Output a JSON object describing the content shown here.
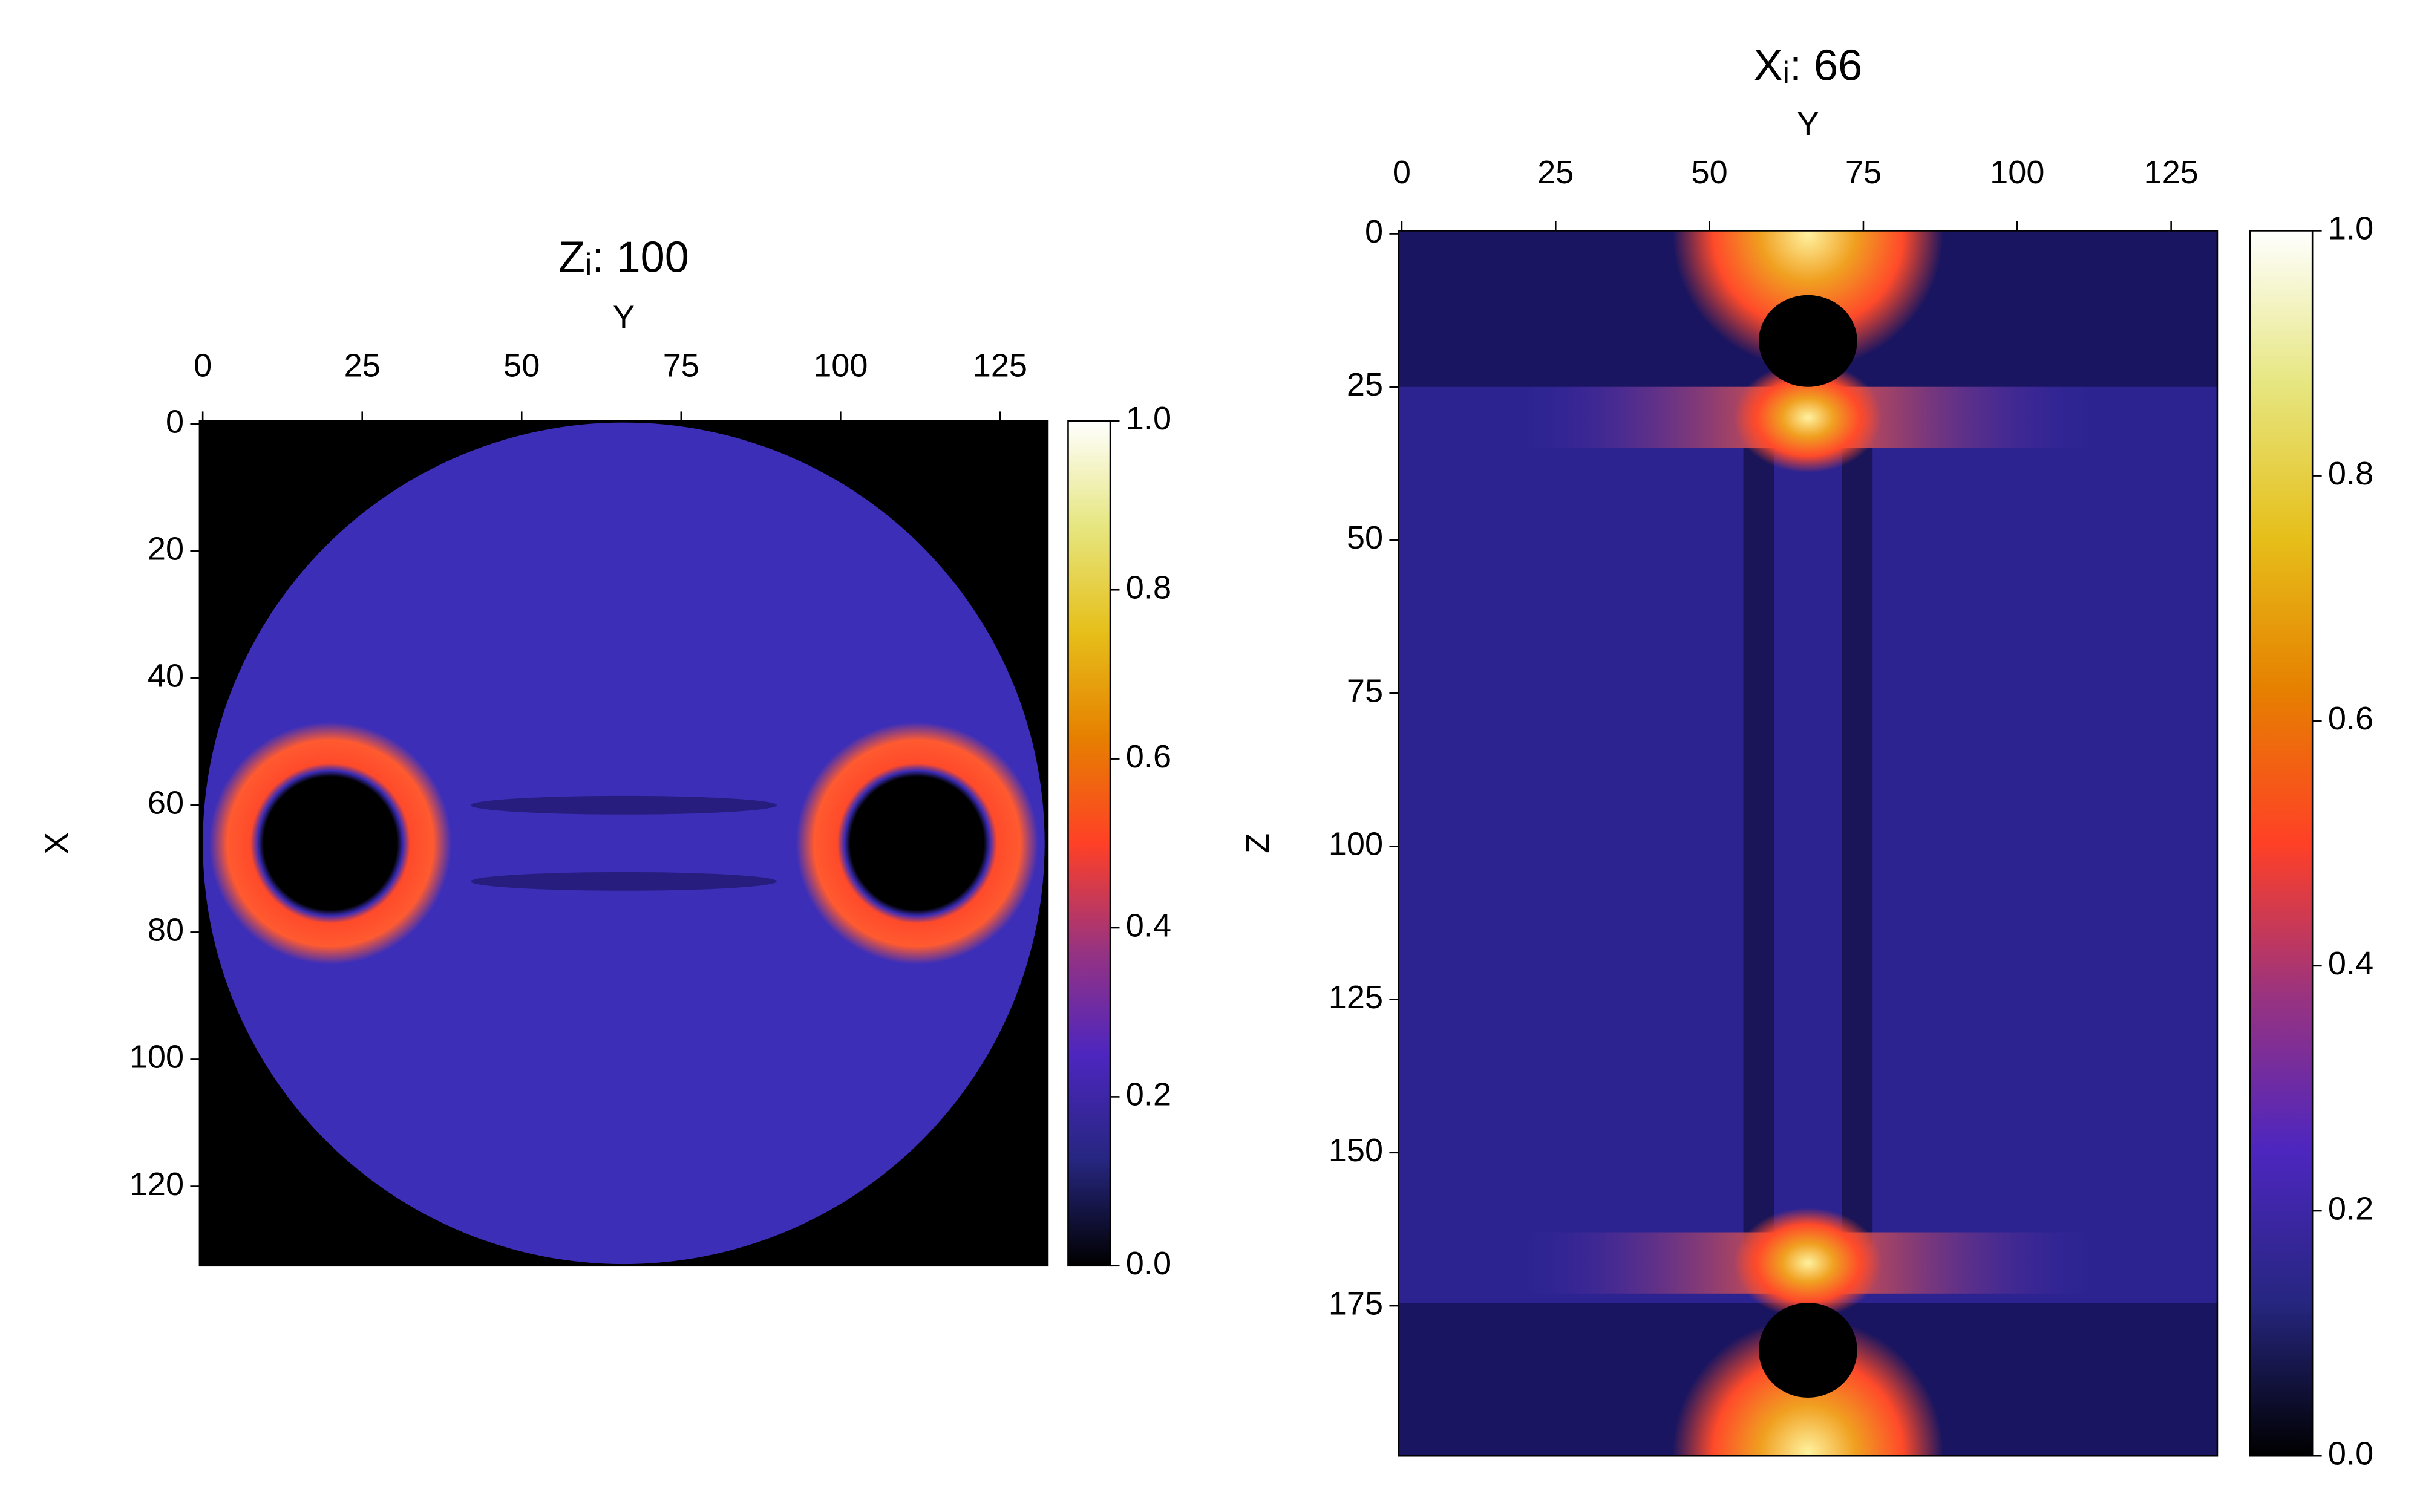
{
  "chart_data": [
    {
      "type": "heatmap",
      "title": "Zᵢ: 100",
      "xlabel": "Y",
      "ylabel": "X",
      "xlim": [
        -0.5,
        132.5
      ],
      "ylim": [
        132.5,
        -0.5
      ],
      "xticks": [
        0,
        25,
        50,
        75,
        100,
        125
      ],
      "yticks": [
        0,
        20,
        40,
        60,
        80,
        100,
        120
      ],
      "colormap": "CMRmap",
      "colorbar": {
        "lim": [
          0,
          1
        ],
        "ticks": [
          {
            "value": 0,
            "label": "0.0"
          },
          0.2,
          0.4,
          0.6,
          0.8,
          {
            "value": 1,
            "label": "1.0"
          }
        ]
      }
    },
    {
      "type": "heatmap",
      "title": "Xᵢ: 66",
      "xlabel": "Y",
      "ylabel": "Z",
      "xlim": [
        -0.5,
        132.5
      ],
      "ylim": [
        199.5,
        -0.5
      ],
      "xticks": [
        0,
        25,
        50,
        75,
        100,
        125
      ],
      "yticks": [
        0,
        25,
        50,
        75,
        100,
        125,
        150,
        175
      ],
      "colormap": "CMRmap",
      "colorbar": {
        "lim": [
          0,
          1
        ],
        "ticks": [
          {
            "value": 0,
            "label": "0.0"
          },
          0.2,
          0.4,
          0.6,
          0.8,
          {
            "value": 1,
            "label": "1.0"
          }
        ]
      }
    }
  ]
}
